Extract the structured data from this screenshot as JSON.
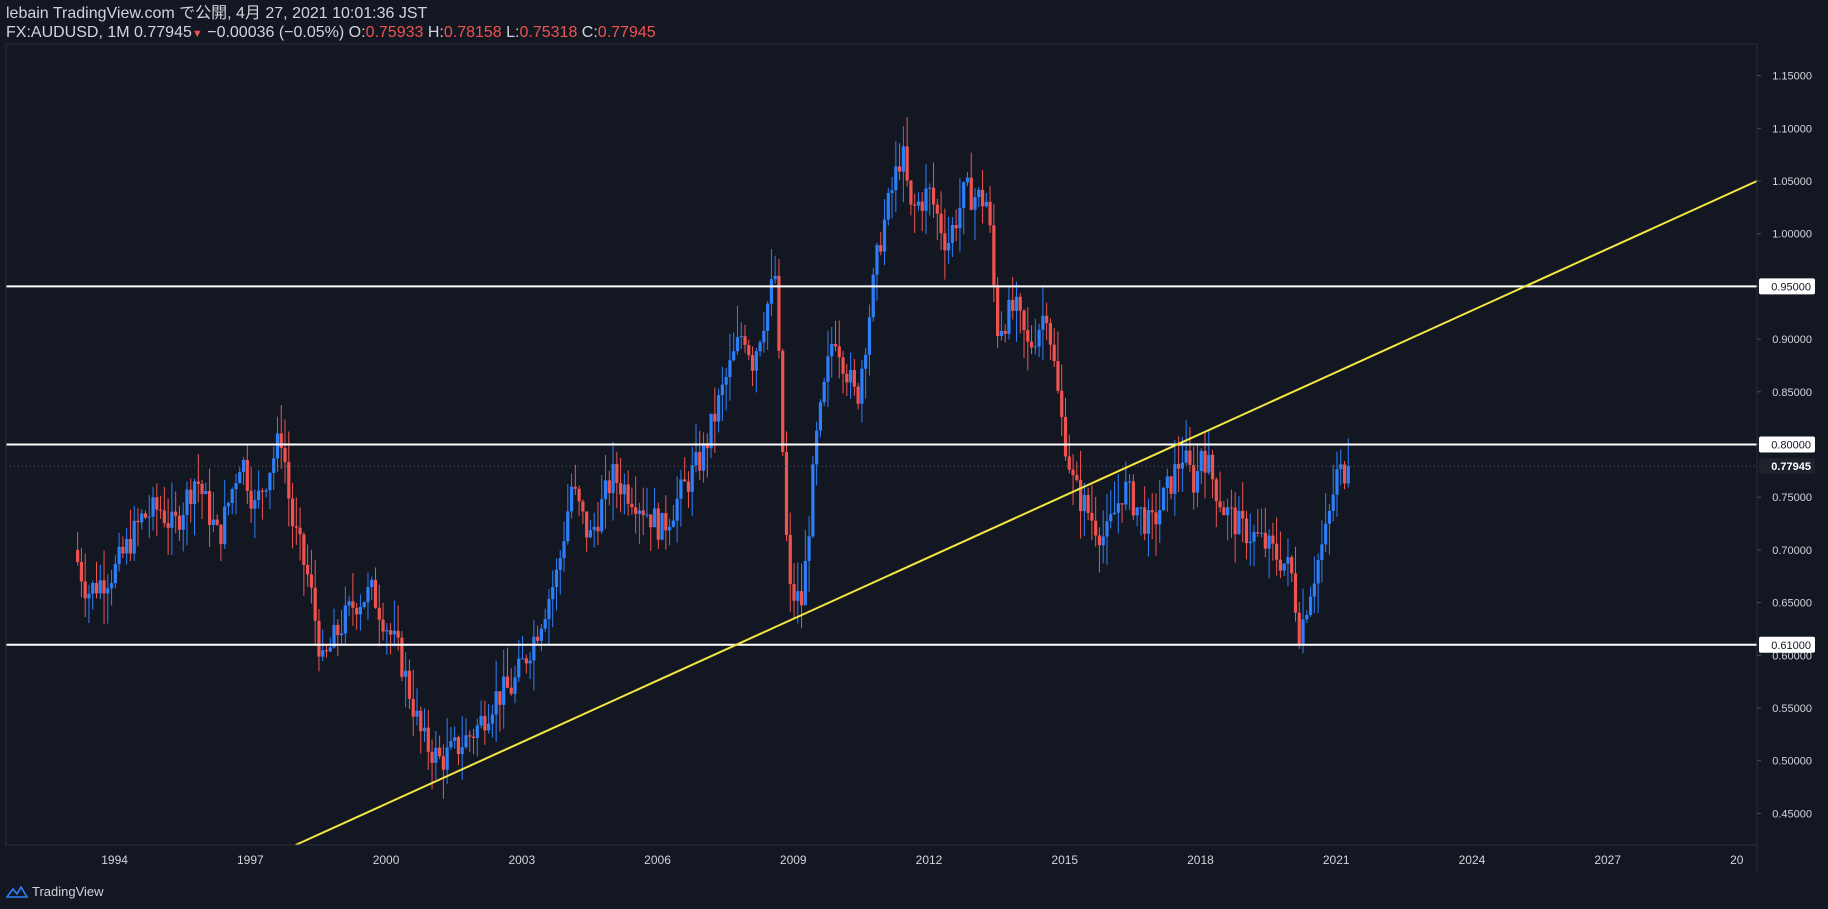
{
  "header": {
    "line1": "lebain TradingView.com で公開, 4月 27, 2021 10:01:36 JST",
    "symbol": "FX:AUDUSD, 1M",
    "last": "0.77945",
    "change_arrow": "▼",
    "change": "−0.00036 (−0.05%)",
    "o_label": "O:",
    "o": "0.75933",
    "h_label": "H:",
    "h": "0.78158",
    "l_label": "L:",
    "l": "0.75318",
    "c_label": "C:",
    "c": "0.77945"
  },
  "footer": {
    "brand": "TradingView"
  },
  "colors": {
    "background": "#131722",
    "up": "#2d7ff9",
    "down": "#ef5350",
    "trendline": "#f5e642",
    "level": "#ffffff",
    "axis_text": "#d1d4dc"
  },
  "chart_data": {
    "type": "candlestick",
    "symbol": "FX:AUDUSD",
    "interval": "1M",
    "ylim": [
      0.42,
      1.18
    ],
    "xlim": [
      1991.6,
      2030.3
    ],
    "y_ticks": [
      "1.15000",
      "1.10000",
      "1.05000",
      "1.00000",
      "0.95000",
      "0.90000",
      "0.85000",
      "0.80000",
      "0.75000",
      "0.70000",
      "0.65000",
      "0.60000",
      "0.55000",
      "0.50000",
      "0.45000"
    ],
    "x_ticks": [
      "1994",
      "1997",
      "2000",
      "2003",
      "2006",
      "2009",
      "2012",
      "2015",
      "2018",
      "2021",
      "2024",
      "2027",
      "20"
    ],
    "horizontal_levels": [
      {
        "value": 0.95,
        "label": "0.95000"
      },
      {
        "value": 0.8,
        "label": "0.80000"
      },
      {
        "value": 0.61,
        "label": "0.61000"
      }
    ],
    "last_price": {
      "value": 0.77945,
      "label": "0.77945"
    },
    "trendline": {
      "x1": 1998.0,
      "y1": 0.42,
      "x2": 2030.3,
      "y2": 1.05
    },
    "close_path": [
      [
        1993.1,
        0.7
      ],
      [
        1993.4,
        0.66
      ],
      [
        1994.0,
        0.68
      ],
      [
        1994.6,
        0.73
      ],
      [
        1995.0,
        0.74
      ],
      [
        1995.3,
        0.72
      ],
      [
        1995.8,
        0.77
      ],
      [
        1996.3,
        0.71
      ],
      [
        1996.8,
        0.79
      ],
      [
        1997.1,
        0.74
      ],
      [
        1997.7,
        0.81
      ],
      [
        1997.9,
        0.73
      ],
      [
        1998.3,
        0.67
      ],
      [
        1998.6,
        0.59
      ],
      [
        1998.9,
        0.62
      ],
      [
        1999.3,
        0.65
      ],
      [
        1999.7,
        0.66
      ],
      [
        2000.3,
        0.6
      ],
      [
        2000.8,
        0.52
      ],
      [
        2001.2,
        0.5
      ],
      [
        2001.5,
        0.51
      ],
      [
        2002.0,
        0.53
      ],
      [
        2002.4,
        0.56
      ],
      [
        2002.8,
        0.57
      ],
      [
        2003.3,
        0.62
      ],
      [
        2003.8,
        0.68
      ],
      [
        2004.1,
        0.76
      ],
      [
        2004.5,
        0.71
      ],
      [
        2005.0,
        0.77
      ],
      [
        2005.5,
        0.75
      ],
      [
        2006.1,
        0.72
      ],
      [
        2006.6,
        0.76
      ],
      [
        2007.0,
        0.79
      ],
      [
        2007.5,
        0.86
      ],
      [
        2007.9,
        0.91
      ],
      [
        2008.1,
        0.88
      ],
      [
        2008.6,
        0.96
      ],
      [
        2008.9,
        0.66
      ],
      [
        2009.2,
        0.65
      ],
      [
        2009.5,
        0.8
      ],
      [
        2009.9,
        0.91
      ],
      [
        2010.4,
        0.84
      ],
      [
        2010.9,
        0.99
      ],
      [
        2011.4,
        1.08
      ],
      [
        2011.6,
        1.02
      ],
      [
        2012.0,
        1.04
      ],
      [
        2012.4,
        0.99
      ],
      [
        2012.8,
        1.04
      ],
      [
        2013.3,
        1.03
      ],
      [
        2013.5,
        0.91
      ],
      [
        2013.9,
        0.93
      ],
      [
        2014.2,
        0.89
      ],
      [
        2014.6,
        0.93
      ],
      [
        2014.9,
        0.83
      ],
      [
        2015.2,
        0.76
      ],
      [
        2015.6,
        0.73
      ],
      [
        2015.9,
        0.71
      ],
      [
        2016.3,
        0.76
      ],
      [
        2016.6,
        0.74
      ],
      [
        2016.9,
        0.72
      ],
      [
        2017.3,
        0.76
      ],
      [
        2017.6,
        0.79
      ],
      [
        2017.9,
        0.76
      ],
      [
        2018.0,
        0.8
      ],
      [
        2018.5,
        0.74
      ],
      [
        2018.9,
        0.72
      ],
      [
        2019.3,
        0.71
      ],
      [
        2019.8,
        0.69
      ],
      [
        2020.0,
        0.68
      ],
      [
        2020.2,
        0.62
      ],
      [
        2020.4,
        0.66
      ],
      [
        2020.8,
        0.72
      ],
      [
        2021.0,
        0.77
      ],
      [
        2021.3,
        0.77945
      ]
    ]
  }
}
